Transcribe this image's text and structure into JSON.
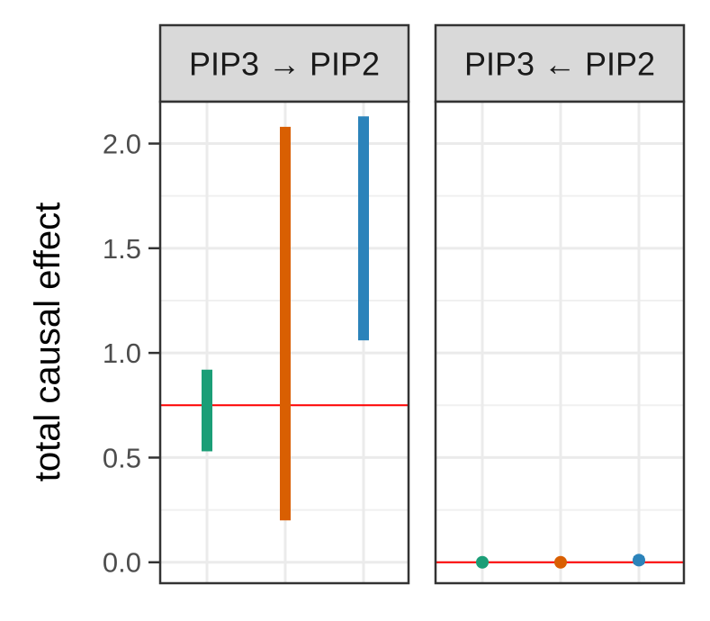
{
  "chart_data": {
    "type": "faceted-interval",
    "ylabel": "total causal effect",
    "ylim": [
      -0.1,
      2.2
    ],
    "y_ticks": [
      0.0,
      0.5,
      1.0,
      1.5,
      2.0
    ],
    "y_tick_labels": [
      "0.0",
      "0.5",
      "1.0",
      "1.5",
      "2.0"
    ],
    "x_slots": 3,
    "reference_line": {
      "value": 0.75,
      "color": "#ff0000"
    },
    "colors": [
      "#1b9e77",
      "#d95f02",
      "#2b83ba"
    ],
    "panels": [
      {
        "label": "PIP3 → PIP2",
        "intervals": [
          {
            "x": 1,
            "low": 0.53,
            "high": 0.92
          },
          {
            "x": 2,
            "low": 0.2,
            "high": 2.08
          },
          {
            "x": 3,
            "low": 1.06,
            "high": 2.13
          }
        ]
      },
      {
        "label": "PIP3 ← PIP2",
        "reference_line": {
          "value": 0.0,
          "color": "#ff0000"
        },
        "intervals": [
          {
            "x": 1,
            "low": 0.0,
            "high": 0.0
          },
          {
            "x": 2,
            "low": 0.0,
            "high": 0.0
          },
          {
            "x": 3,
            "low": -0.01,
            "high": 0.03
          }
        ]
      }
    ]
  }
}
